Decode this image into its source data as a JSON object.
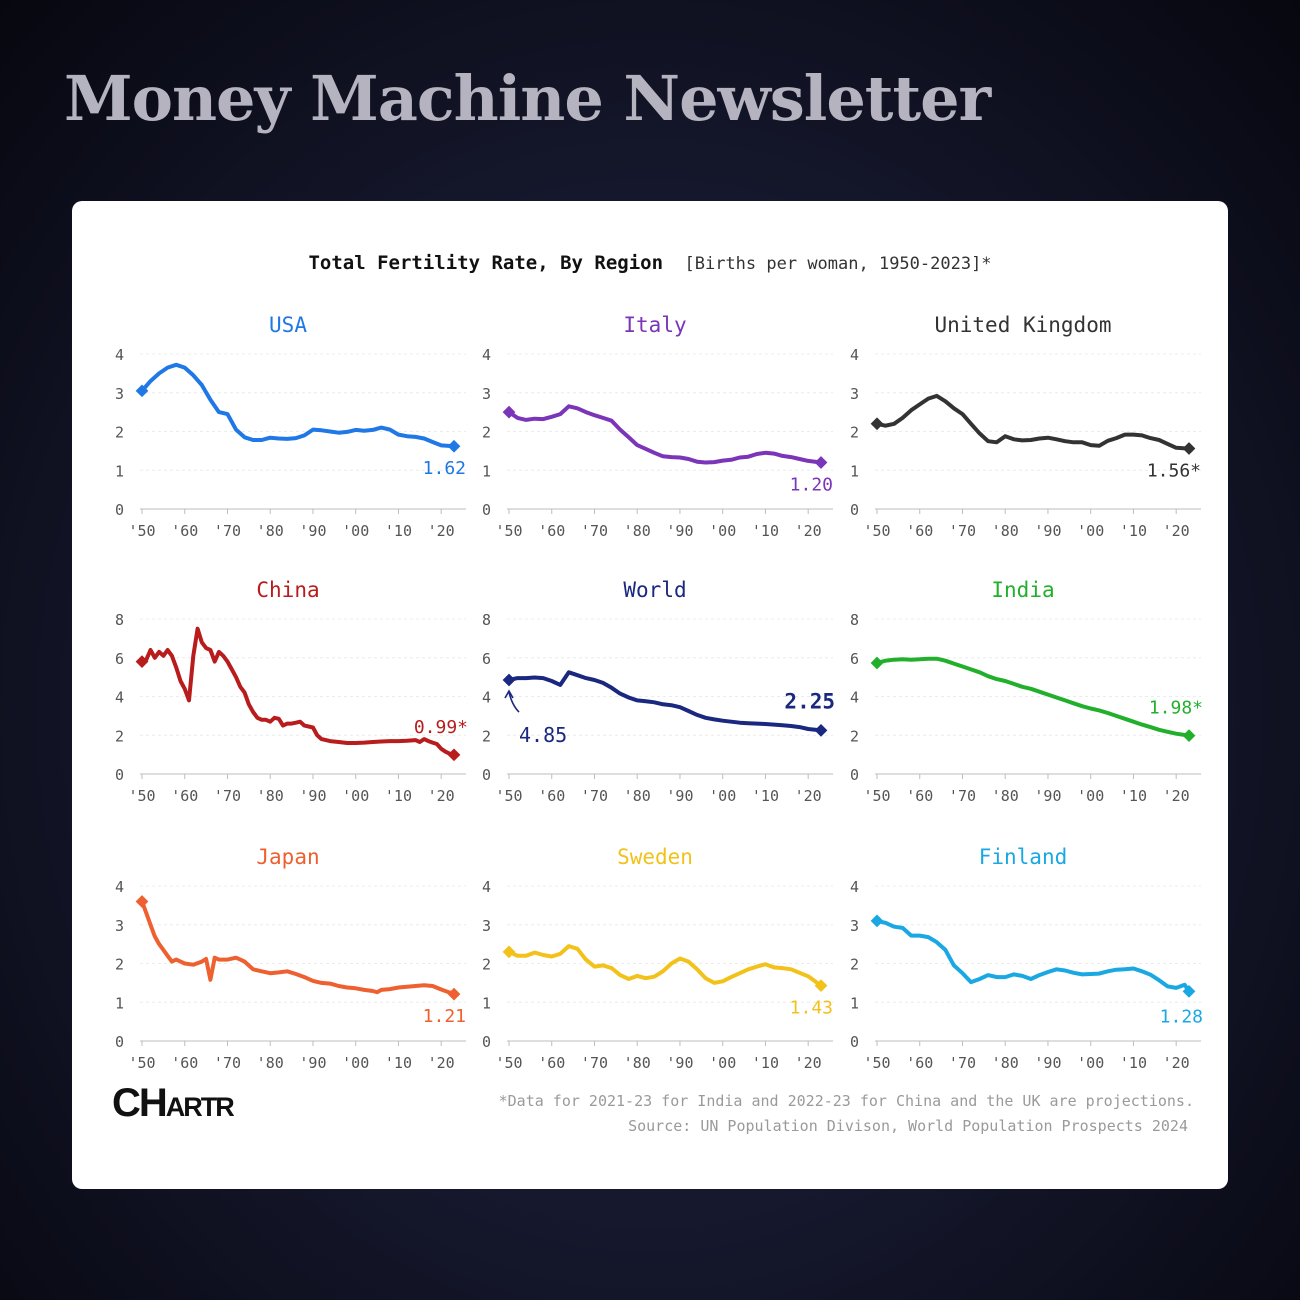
{
  "newsletter_title": "Money Machine Newsletter",
  "chart_title": "Total Fertility Rate, By Region",
  "chart_subtitle": "[Births per woman, 1950-2023]*",
  "footnote": "*Data for 2021-23 for India and 2022-23 for China and the UK are projections.",
  "source": "Source: UN Population Divison, World Population Prospects 2024",
  "logo": {
    "big1": "C",
    "big2": "H",
    "small": "ARTR"
  },
  "x_tick_labels": [
    "'50",
    "'60",
    "'70",
    "'80",
    "'90",
    "'00",
    "'10",
    "'20"
  ],
  "chart_data": [
    {
      "type": "line",
      "title": "USA",
      "color": "#1f78e6",
      "ylim": [
        0,
        4
      ],
      "yticks": [
        0,
        1,
        2,
        3,
        4
      ],
      "xlim": [
        1950,
        2023
      ],
      "end_label": "1.62",
      "label_pos": "below-left",
      "x": [
        1950,
        1952,
        1954,
        1956,
        1958,
        1960,
        1962,
        1964,
        1966,
        1968,
        1970,
        1972,
        1974,
        1976,
        1978,
        1980,
        1982,
        1984,
        1986,
        1988,
        1990,
        1992,
        1994,
        1996,
        1998,
        2000,
        2002,
        2004,
        2006,
        2008,
        2010,
        2012,
        2014,
        2016,
        2018,
        2020,
        2023
      ],
      "y": [
        3.05,
        3.3,
        3.5,
        3.65,
        3.72,
        3.65,
        3.45,
        3.2,
        2.82,
        2.5,
        2.45,
        2.05,
        1.85,
        1.78,
        1.78,
        1.84,
        1.82,
        1.81,
        1.83,
        1.9,
        2.05,
        2.03,
        2.0,
        1.97,
        1.99,
        2.04,
        2.02,
        2.04,
        2.1,
        2.05,
        1.92,
        1.88,
        1.86,
        1.82,
        1.73,
        1.64,
        1.62
      ]
    },
    {
      "type": "line",
      "title": "Italy",
      "color": "#7a35b8",
      "ylim": [
        0,
        4
      ],
      "yticks": [
        0,
        1,
        2,
        3,
        4
      ],
      "xlim": [
        1950,
        2023
      ],
      "end_label": "1.20",
      "label_pos": "below-left",
      "x": [
        1950,
        1952,
        1954,
        1956,
        1958,
        1960,
        1962,
        1964,
        1966,
        1968,
        1970,
        1972,
        1974,
        1976,
        1978,
        1980,
        1982,
        1984,
        1986,
        1988,
        1990,
        1992,
        1994,
        1996,
        1998,
        2000,
        2002,
        2004,
        2006,
        2008,
        2010,
        2012,
        2014,
        2016,
        2018,
        2020,
        2023
      ],
      "y": [
        2.5,
        2.35,
        2.3,
        2.33,
        2.32,
        2.38,
        2.45,
        2.65,
        2.6,
        2.5,
        2.42,
        2.35,
        2.28,
        2.05,
        1.85,
        1.65,
        1.55,
        1.45,
        1.36,
        1.34,
        1.33,
        1.29,
        1.22,
        1.2,
        1.21,
        1.25,
        1.27,
        1.33,
        1.35,
        1.42,
        1.45,
        1.43,
        1.37,
        1.34,
        1.29,
        1.24,
        1.2
      ]
    },
    {
      "type": "line",
      "title": "United Kingdom",
      "color": "#333333",
      "ylim": [
        0,
        4
      ],
      "yticks": [
        0,
        1,
        2,
        3,
        4
      ],
      "xlim": [
        1950,
        2023
      ],
      "end_label": "1.56*",
      "label_pos": "below-left",
      "x": [
        1950,
        1952,
        1954,
        1956,
        1958,
        1960,
        1962,
        1964,
        1966,
        1968,
        1970,
        1972,
        1974,
        1976,
        1978,
        1980,
        1982,
        1984,
        1986,
        1988,
        1990,
        1992,
        1994,
        1996,
        1998,
        2000,
        2002,
        2004,
        2006,
        2008,
        2010,
        2012,
        2014,
        2016,
        2018,
        2020,
        2023
      ],
      "y": [
        2.2,
        2.15,
        2.2,
        2.35,
        2.55,
        2.7,
        2.85,
        2.92,
        2.78,
        2.6,
        2.45,
        2.2,
        1.95,
        1.75,
        1.72,
        1.88,
        1.8,
        1.77,
        1.78,
        1.82,
        1.84,
        1.8,
        1.75,
        1.72,
        1.72,
        1.65,
        1.63,
        1.76,
        1.83,
        1.92,
        1.92,
        1.9,
        1.83,
        1.78,
        1.68,
        1.58,
        1.56
      ]
    },
    {
      "type": "line",
      "title": "China",
      "color": "#b81c1c",
      "ylim": [
        0,
        8
      ],
      "yticks": [
        0,
        2,
        4,
        6,
        8
      ],
      "xlim": [
        1950,
        2023
      ],
      "end_label": "0.99*",
      "label_pos": "above-left",
      "x": [
        1950,
        1951,
        1952,
        1953,
        1954,
        1955,
        1956,
        1957,
        1958,
        1959,
        1960,
        1961,
        1962,
        1963,
        1964,
        1965,
        1966,
        1967,
        1968,
        1969,
        1970,
        1971,
        1972,
        1973,
        1974,
        1975,
        1976,
        1977,
        1978,
        1979,
        1980,
        1981,
        1982,
        1983,
        1984,
        1985,
        1986,
        1987,
        1988,
        1989,
        1990,
        1991,
        1992,
        1994,
        1996,
        1998,
        2000,
        2002,
        2004,
        2006,
        2008,
        2010,
        2012,
        2014,
        2015,
        2016,
        2017,
        2018,
        2019,
        2020,
        2021,
        2022,
        2023
      ],
      "y": [
        5.8,
        5.9,
        6.4,
        6.0,
        6.3,
        6.1,
        6.4,
        6.1,
        5.5,
        4.8,
        4.4,
        3.8,
        6.1,
        7.5,
        6.8,
        6.5,
        6.4,
        5.8,
        6.3,
        6.1,
        5.8,
        5.4,
        5.0,
        4.5,
        4.2,
        3.6,
        3.2,
        2.9,
        2.8,
        2.8,
        2.7,
        2.9,
        2.85,
        2.5,
        2.6,
        2.6,
        2.65,
        2.7,
        2.5,
        2.45,
        2.4,
        2.0,
        1.8,
        1.7,
        1.65,
        1.6,
        1.6,
        1.62,
        1.65,
        1.68,
        1.7,
        1.7,
        1.72,
        1.75,
        1.65,
        1.8,
        1.7,
        1.62,
        1.55,
        1.3,
        1.15,
        1.05,
        0.99
      ]
    },
    {
      "type": "line",
      "title": "World",
      "color": "#1a2880",
      "ylim": [
        0,
        8
      ],
      "yticks": [
        0,
        2,
        4,
        6,
        8
      ],
      "xlim": [
        1950,
        2023
      ],
      "start_label": "4.85",
      "end_label": "2.25",
      "label_pos": "above-left",
      "x": [
        1950,
        1952,
        1954,
        1956,
        1958,
        1960,
        1962,
        1964,
        1966,
        1968,
        1970,
        1972,
        1974,
        1976,
        1978,
        1980,
        1982,
        1984,
        1986,
        1988,
        1990,
        1992,
        1994,
        1996,
        1998,
        2000,
        2002,
        2004,
        2006,
        2008,
        2010,
        2012,
        2014,
        2016,
        2018,
        2020,
        2023
      ],
      "y": [
        4.85,
        4.95,
        4.95,
        4.98,
        4.95,
        4.8,
        4.6,
        5.25,
        5.1,
        4.95,
        4.85,
        4.7,
        4.45,
        4.15,
        3.95,
        3.8,
        3.75,
        3.7,
        3.6,
        3.55,
        3.45,
        3.25,
        3.05,
        2.9,
        2.82,
        2.75,
        2.7,
        2.65,
        2.62,
        2.6,
        2.58,
        2.55,
        2.52,
        2.48,
        2.42,
        2.32,
        2.25
      ]
    },
    {
      "type": "line",
      "title": "India",
      "color": "#22b02c",
      "ylim": [
        0,
        8
      ],
      "yticks": [
        0,
        2,
        4,
        6,
        8
      ],
      "xlim": [
        1950,
        2023
      ],
      "end_label": "1.98*",
      "label_pos": "above-left",
      "x": [
        1950,
        1952,
        1954,
        1956,
        1958,
        1960,
        1962,
        1964,
        1966,
        1968,
        1970,
        1972,
        1974,
        1976,
        1978,
        1980,
        1982,
        1984,
        1986,
        1988,
        1990,
        1992,
        1994,
        1996,
        1998,
        2000,
        2002,
        2004,
        2006,
        2008,
        2010,
        2012,
        2014,
        2016,
        2018,
        2020,
        2023
      ],
      "y": [
        5.73,
        5.85,
        5.9,
        5.92,
        5.9,
        5.92,
        5.95,
        5.95,
        5.85,
        5.7,
        5.55,
        5.4,
        5.25,
        5.05,
        4.9,
        4.8,
        4.65,
        4.5,
        4.4,
        4.25,
        4.1,
        3.95,
        3.8,
        3.65,
        3.5,
        3.38,
        3.28,
        3.15,
        3.0,
        2.85,
        2.7,
        2.55,
        2.42,
        2.28,
        2.18,
        2.08,
        1.98
      ]
    },
    {
      "type": "line",
      "title": "Japan",
      "color": "#ee6030",
      "ylim": [
        0,
        4
      ],
      "yticks": [
        0,
        1,
        2,
        3,
        4
      ],
      "xlim": [
        1950,
        2023
      ],
      "end_label": "1.21",
      "label_pos": "below-left",
      "x": [
        1950,
        1951,
        1952,
        1953,
        1954,
        1955,
        1956,
        1957,
        1958,
        1959,
        1960,
        1962,
        1964,
        1965,
        1966,
        1967,
        1968,
        1970,
        1972,
        1973,
        1974,
        1976,
        1978,
        1980,
        1982,
        1984,
        1986,
        1988,
        1990,
        1992,
        1994,
        1996,
        1998,
        2000,
        2002,
        2004,
        2005,
        2006,
        2008,
        2010,
        2012,
        2014,
        2016,
        2018,
        2020,
        2023
      ],
      "y": [
        3.6,
        3.3,
        3.0,
        2.7,
        2.5,
        2.35,
        2.2,
        2.05,
        2.1,
        2.05,
        2.0,
        1.97,
        2.05,
        2.12,
        1.58,
        2.15,
        2.1,
        2.1,
        2.15,
        2.1,
        2.05,
        1.85,
        1.8,
        1.75,
        1.77,
        1.8,
        1.73,
        1.65,
        1.55,
        1.5,
        1.48,
        1.42,
        1.38,
        1.36,
        1.32,
        1.29,
        1.26,
        1.32,
        1.34,
        1.38,
        1.4,
        1.42,
        1.44,
        1.42,
        1.33,
        1.21
      ]
    },
    {
      "type": "line",
      "title": "Sweden",
      "color": "#f2c21a",
      "ylim": [
        0,
        4
      ],
      "yticks": [
        0,
        1,
        2,
        3,
        4
      ],
      "xlim": [
        1950,
        2023
      ],
      "end_label": "1.43",
      "label_pos": "below-left",
      "x": [
        1950,
        1952,
        1954,
        1956,
        1958,
        1960,
        1962,
        1964,
        1966,
        1968,
        1970,
        1972,
        1974,
        1976,
        1978,
        1980,
        1982,
        1984,
        1986,
        1988,
        1990,
        1992,
        1994,
        1996,
        1998,
        2000,
        2002,
        2004,
        2006,
        2008,
        2010,
        2012,
        2014,
        2016,
        2018,
        2020,
        2023
      ],
      "y": [
        2.3,
        2.2,
        2.2,
        2.28,
        2.22,
        2.18,
        2.25,
        2.45,
        2.38,
        2.1,
        1.92,
        1.95,
        1.88,
        1.7,
        1.6,
        1.68,
        1.62,
        1.66,
        1.8,
        2.0,
        2.13,
        2.05,
        1.85,
        1.62,
        1.5,
        1.54,
        1.65,
        1.75,
        1.85,
        1.92,
        1.98,
        1.9,
        1.88,
        1.85,
        1.76,
        1.67,
        1.43
      ]
    },
    {
      "type": "line",
      "title": "Finland",
      "color": "#1aa8e3",
      "ylim": [
        0,
        4
      ],
      "yticks": [
        0,
        1,
        2,
        3,
        4
      ],
      "xlim": [
        1950,
        2023
      ],
      "end_label": "1.28",
      "label_pos": "below",
      "x": [
        1950,
        1952,
        1954,
        1956,
        1958,
        1960,
        1962,
        1964,
        1966,
        1968,
        1970,
        1972,
        1974,
        1976,
        1978,
        1980,
        1982,
        1984,
        1986,
        1988,
        1990,
        1992,
        1994,
        1996,
        1998,
        2000,
        2002,
        2004,
        2006,
        2008,
        2010,
        2012,
        2014,
        2016,
        2018,
        2020,
        2022,
        2023
      ],
      "y": [
        3.1,
        3.05,
        2.95,
        2.92,
        2.72,
        2.72,
        2.68,
        2.55,
        2.35,
        1.95,
        1.75,
        1.52,
        1.6,
        1.7,
        1.65,
        1.65,
        1.72,
        1.68,
        1.6,
        1.7,
        1.78,
        1.85,
        1.82,
        1.76,
        1.72,
        1.73,
        1.74,
        1.8,
        1.84,
        1.85,
        1.87,
        1.8,
        1.71,
        1.57,
        1.41,
        1.37,
        1.45,
        1.28
      ]
    }
  ]
}
